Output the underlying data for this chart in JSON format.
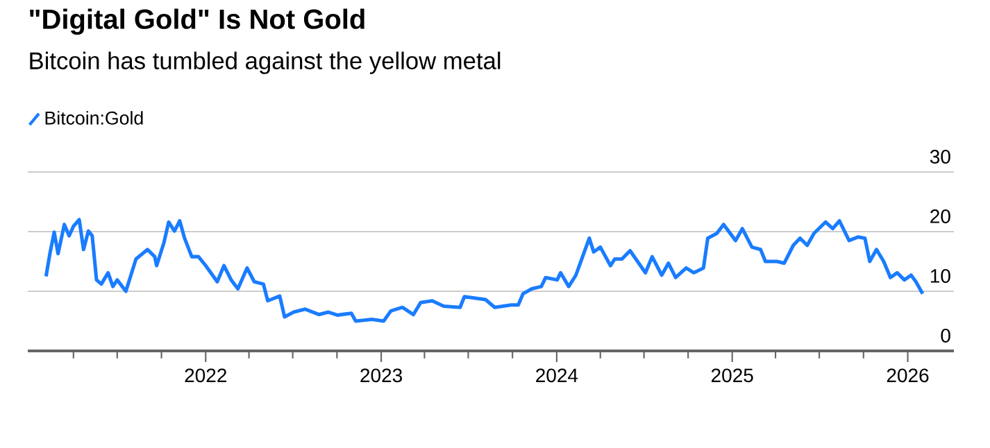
{
  "chart_data": {
    "type": "line",
    "title": "\"Digital Gold\" Is Not Gold",
    "subtitle": "Bitcoin has tumbled against the yellow metal",
    "x": [
      "2021-02-03",
      "2021-02-11",
      "2021-02-20",
      "2021-02-28",
      "2021-03-13",
      "2021-03-23",
      "2021-04-01",
      "2021-04-13",
      "2021-04-22",
      "2021-05-02",
      "2021-05-10",
      "2021-05-19",
      "2021-05-29",
      "2021-06-12",
      "2021-06-22",
      "2021-07-01",
      "2021-07-19",
      "2021-08-09",
      "2021-09-02",
      "2021-09-17",
      "2021-09-21",
      "2021-10-06",
      "2021-10-16",
      "2021-10-28",
      "2021-11-08",
      "2021-11-18",
      "2021-12-03",
      "2021-12-17",
      "2022-01-01",
      "2022-01-25",
      "2022-02-08",
      "2022-02-23",
      "2022-03-09",
      "2022-03-28",
      "2022-04-12",
      "2022-05-01",
      "2022-05-10",
      "2022-06-04",
      "2022-06-14",
      "2022-07-03",
      "2022-07-27",
      "2022-08-25",
      "2022-09-13",
      "2022-10-02",
      "2022-10-31",
      "2022-11-09",
      "2022-12-13",
      "2023-01-06",
      "2023-01-21",
      "2023-02-14",
      "2023-03-09",
      "2023-03-24",
      "2023-04-17",
      "2023-05-11",
      "2023-06-14",
      "2023-06-23",
      "2023-08-06",
      "2023-08-25",
      "2023-09-28",
      "2023-10-13",
      "2023-10-23",
      "2023-11-10",
      "2023-11-30",
      "2023-12-09",
      "2024-01-02",
      "2024-01-09",
      "2024-01-26",
      "2024-02-10",
      "2024-02-19",
      "2024-03-09",
      "2024-03-18",
      "2024-04-01",
      "2024-04-22",
      "2024-05-01",
      "2024-05-16",
      "2024-06-02",
      "2024-06-14",
      "2024-07-04",
      "2024-07-18",
      "2024-08-07",
      "2024-08-21",
      "2024-09-05",
      "2024-09-27",
      "2024-10-13",
      "2024-11-02",
      "2024-11-11",
      "2024-11-30",
      "2024-12-14",
      "2025-01-08",
      "2025-01-22",
      "2025-02-11",
      "2025-03-01",
      "2025-03-11",
      "2025-04-04",
      "2025-04-19",
      "2025-05-08",
      "2025-05-22",
      "2025-06-06",
      "2025-06-20",
      "2025-07-14",
      "2025-07-29",
      "2025-08-12",
      "2025-09-01",
      "2025-09-20",
      "2025-10-04",
      "2025-10-14",
      "2025-10-28",
      "2025-11-12",
      "2025-11-26",
      "2025-12-10",
      "2025-12-25",
      "2026-01-08",
      "2026-01-18",
      "2026-02-01"
    ],
    "series": [
      {
        "name": "Bitcoin:Gold",
        "color": "#1a7cff",
        "values": [
          12.5,
          16.3,
          19.9,
          16.3,
          21.2,
          19.3,
          20.9,
          22.0,
          17.0,
          20.1,
          19.3,
          11.9,
          11.2,
          13.1,
          10.8,
          11.9,
          10.0,
          15.4,
          17.0,
          15.8,
          14.3,
          18.1,
          21.6,
          20.1,
          21.8,
          18.9,
          15.8,
          15.8,
          14.3,
          11.6,
          14.3,
          11.9,
          10.4,
          13.9,
          11.6,
          11.2,
          8.4,
          9.2,
          5.7,
          6.5,
          7.0,
          6.1,
          6.5,
          6.0,
          6.3,
          5.0,
          5.3,
          5.0,
          6.7,
          7.3,
          6.1,
          8.1,
          8.4,
          7.5,
          7.3,
          9.1,
          8.6,
          7.3,
          7.7,
          7.7,
          9.6,
          10.4,
          10.8,
          12.3,
          11.9,
          13.1,
          10.8,
          12.7,
          14.7,
          18.9,
          16.6,
          17.4,
          14.3,
          15.4,
          15.4,
          16.8,
          15.4,
          13.1,
          15.8,
          12.7,
          14.7,
          12.3,
          13.9,
          13.1,
          13.9,
          18.9,
          19.7,
          21.2,
          18.5,
          20.5,
          17.4,
          17.0,
          15.0,
          15.0,
          14.7,
          17.7,
          18.9,
          17.7,
          19.7,
          21.6,
          20.5,
          21.8,
          18.5,
          19.1,
          18.9,
          15.0,
          17.0,
          15.0,
          12.3,
          13.1,
          11.9,
          12.7,
          11.6,
          9.6
        ]
      }
    ],
    "xlim": [
      "2020-12-27",
      "2026-04-07"
    ],
    "xticks": [
      {
        "value": "2021-04",
        "label": null
      },
      {
        "value": "2021-07",
        "label": null
      },
      {
        "value": "2021-10",
        "label": null
      },
      "2022",
      {
        "value": "2022-04",
        "label": null
      },
      {
        "value": "2022-07",
        "label": null
      },
      {
        "value": "2022-10",
        "label": null
      },
      "2023",
      {
        "value": "2023-04",
        "label": null
      },
      {
        "value": "2023-07",
        "label": null
      },
      {
        "value": "2023-10",
        "label": null
      },
      "2024",
      {
        "value": "2024-04",
        "label": null
      },
      {
        "value": "2024-07",
        "label": null
      },
      {
        "value": "2024-10",
        "label": null
      },
      "2025",
      {
        "value": "2025-04",
        "label": null
      },
      {
        "value": "2025-07",
        "label": null
      },
      {
        "value": "2025-10",
        "label": null
      },
      "2026"
    ],
    "ylim": [
      0,
      30
    ],
    "yticks": [
      0,
      10,
      20,
      30
    ],
    "grid": "y",
    "legend": "top left",
    "marker": "none",
    "line_style": "solid"
  }
}
